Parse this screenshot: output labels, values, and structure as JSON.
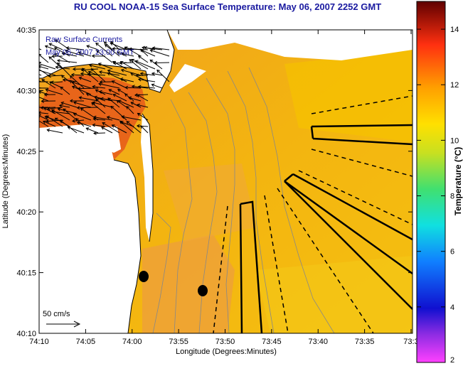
{
  "title": "RU COOL  NOAA-15  Sea Surface Temperature:  May 06, 2007 2252 GMT",
  "legend_lines": [
    "Raw Surface Currents",
    "May 06, 2007 23:00 GMT"
  ],
  "xlabel": "Longitude (Degrees:Minutes)",
  "ylabel": "Latitude (Degrees:Minutes)",
  "x_ticks": [
    "74:10",
    "74:05",
    "74:00",
    "73:55",
    "73:50",
    "73:45",
    "73:40",
    "73:35",
    "73:3"
  ],
  "y_ticks": [
    "40:35",
    "40:30",
    "40:25",
    "40:20",
    "40:15",
    "40:10"
  ],
  "scale_label": "50 cm/s",
  "colorbar": {
    "label": "Temperature (°C)",
    "ticks": [
      "14",
      "12",
      "10",
      "8",
      "6",
      "4",
      "2"
    ],
    "range": [
      2,
      15
    ]
  },
  "colors": {
    "title": "#1a1aa0",
    "land": "#ffffff",
    "sst_main": "#f2b000",
    "sst_warm": "#e86a18",
    "vectors": "#000000"
  }
}
